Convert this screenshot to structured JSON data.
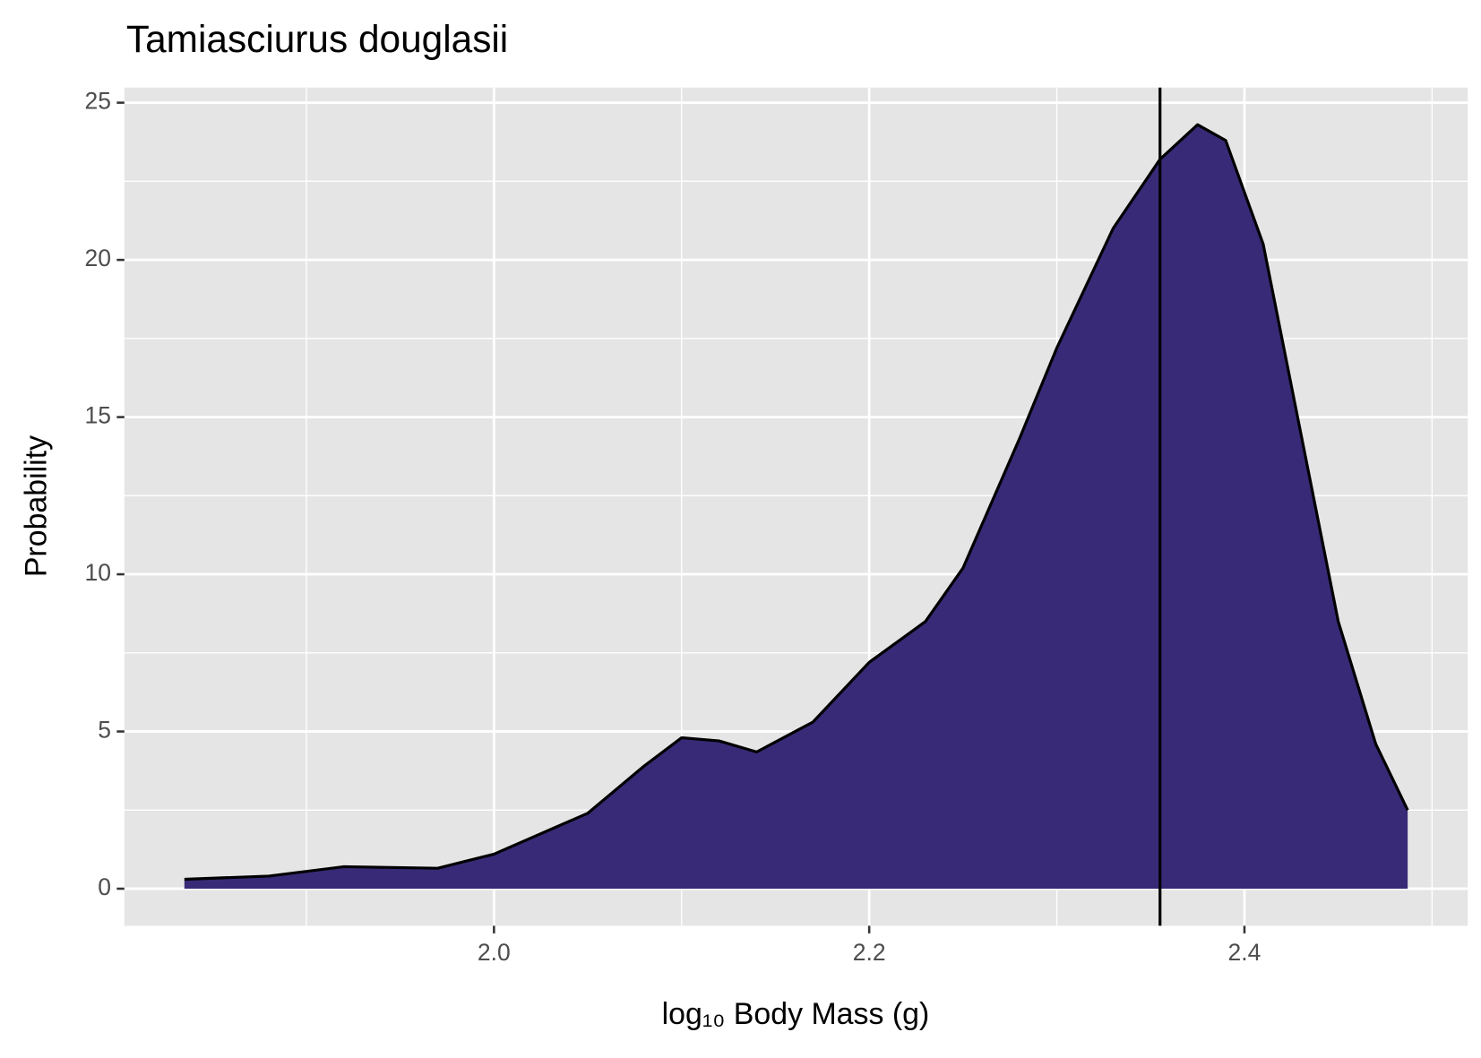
{
  "chart_data": {
    "type": "density",
    "title": "Tamiasciurus douglasii",
    "xlabel": "log₁₀ Body Mass (g)",
    "ylabel": "Probability",
    "x": [
      1.835,
      1.88,
      1.92,
      1.97,
      2.0,
      2.05,
      2.08,
      2.1,
      2.12,
      2.14,
      2.17,
      2.2,
      2.23,
      2.25,
      2.28,
      2.3,
      2.33,
      2.355,
      2.375,
      2.39,
      2.41,
      2.43,
      2.45,
      2.47,
      2.487
    ],
    "values": [
      0.3,
      0.4,
      0.7,
      0.65,
      1.1,
      2.4,
      3.9,
      4.8,
      4.7,
      4.35,
      5.3,
      7.2,
      8.5,
      10.2,
      14.3,
      17.2,
      21,
      23.2,
      24.3,
      23.8,
      20.5,
      14.5,
      8.5,
      4.6,
      2.5
    ],
    "color": "#392a77",
    "line_color": "#000000",
    "vline": 2.355,
    "xlim": [
      1.803,
      2.519
    ],
    "ylim": [
      -1.18,
      25.48
    ],
    "xticks": [
      {
        "value": 2.0,
        "label": "2.0"
      },
      {
        "value": 2.2,
        "label": "2.2"
      },
      {
        "value": 2.4,
        "label": "2.4"
      }
    ],
    "xminor": [
      1.9,
      2.1,
      2.3,
      2.5
    ],
    "yticks": [
      0,
      5,
      10,
      15,
      20,
      25
    ],
    "yminor": [
      2.5,
      7.5,
      12.5,
      17.5,
      22.5
    ],
    "grid": true
  }
}
